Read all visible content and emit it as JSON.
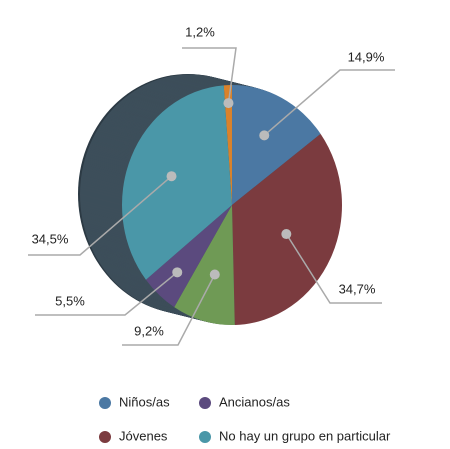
{
  "chart_data": {
    "type": "pie",
    "categories": [
      null,
      "Niños/as",
      "Jóvenes",
      null,
      "Ancianos/as",
      "No hay un grupo en particular"
    ],
    "values": [
      1.2,
      14.9,
      34.7,
      9.2,
      5.5,
      34.5
    ],
    "value_labels": [
      "1,2%",
      "14,9%",
      "34,7%",
      "9,2%",
      "5,5%",
      "34,5%"
    ],
    "colors": [
      "#d9822b",
      "#4b78a3",
      "#7b3b3f",
      "#6f9a55",
      "#5b4a7e",
      "#4a97a8"
    ]
  }
}
